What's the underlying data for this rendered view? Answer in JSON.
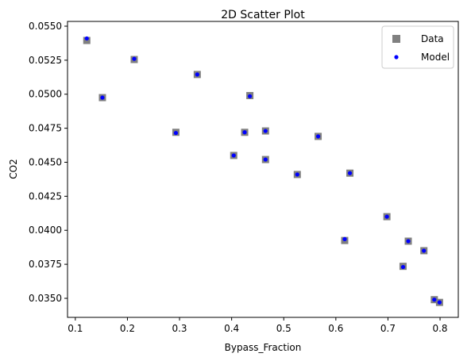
{
  "chart_data": {
    "type": "scatter",
    "title": "2D Scatter Plot",
    "xlabel": "Bypass_Fraction",
    "ylabel": "CO2",
    "xlim": [
      0.085,
      0.835
    ],
    "ylim": [
      0.0336,
      0.05535
    ],
    "xticks": [
      0.1,
      0.2,
      0.3,
      0.4,
      0.5,
      0.6,
      0.7,
      0.8
    ],
    "xtick_labels": [
      "0.1",
      "0.2",
      "0.3",
      "0.4",
      "0.5",
      "0.6",
      "0.7",
      "0.8"
    ],
    "yticks": [
      0.035,
      0.0375,
      0.04,
      0.0425,
      0.045,
      0.0475,
      0.05,
      0.0525,
      0.055
    ],
    "ytick_labels": [
      "0.0350",
      "0.0375",
      "0.0400",
      "0.0425",
      "0.0450",
      "0.0475",
      "0.0500",
      "0.0525",
      "0.0550"
    ],
    "grid": false,
    "legend_position": "top-right",
    "series": [
      {
        "name": "Data",
        "marker": "square",
        "color": "#808080",
        "points": [
          [
            0.122,
            0.05395
          ],
          [
            0.152,
            0.04975
          ],
          [
            0.213,
            0.05255
          ],
          [
            0.293,
            0.0472
          ],
          [
            0.334,
            0.05145
          ],
          [
            0.404,
            0.0455
          ],
          [
            0.425,
            0.0472
          ],
          [
            0.435,
            0.0499
          ],
          [
            0.465,
            0.0473
          ],
          [
            0.465,
            0.0452
          ],
          [
            0.526,
            0.0441
          ],
          [
            0.566,
            0.0469
          ],
          [
            0.617,
            0.03925
          ],
          [
            0.627,
            0.0442
          ],
          [
            0.698,
            0.041
          ],
          [
            0.729,
            0.03735
          ],
          [
            0.739,
            0.0392
          ],
          [
            0.769,
            0.0385
          ],
          [
            0.789,
            0.0349
          ],
          [
            0.799,
            0.0347
          ]
        ]
      },
      {
        "name": "Model",
        "marker": "circle",
        "color": "#0000ff",
        "points": [
          [
            0.122,
            0.0541
          ],
          [
            0.152,
            0.04975
          ],
          [
            0.213,
            0.0526
          ],
          [
            0.293,
            0.04715
          ],
          [
            0.334,
            0.05145
          ],
          [
            0.404,
            0.0455
          ],
          [
            0.425,
            0.0472
          ],
          [
            0.435,
            0.04985
          ],
          [
            0.465,
            0.0473
          ],
          [
            0.465,
            0.0452
          ],
          [
            0.526,
            0.0441
          ],
          [
            0.566,
            0.0469
          ],
          [
            0.617,
            0.03935
          ],
          [
            0.627,
            0.0442
          ],
          [
            0.698,
            0.041
          ],
          [
            0.729,
            0.0373
          ],
          [
            0.739,
            0.0392
          ],
          [
            0.769,
            0.0385
          ],
          [
            0.789,
            0.0349
          ],
          [
            0.799,
            0.0347
          ]
        ]
      }
    ]
  }
}
